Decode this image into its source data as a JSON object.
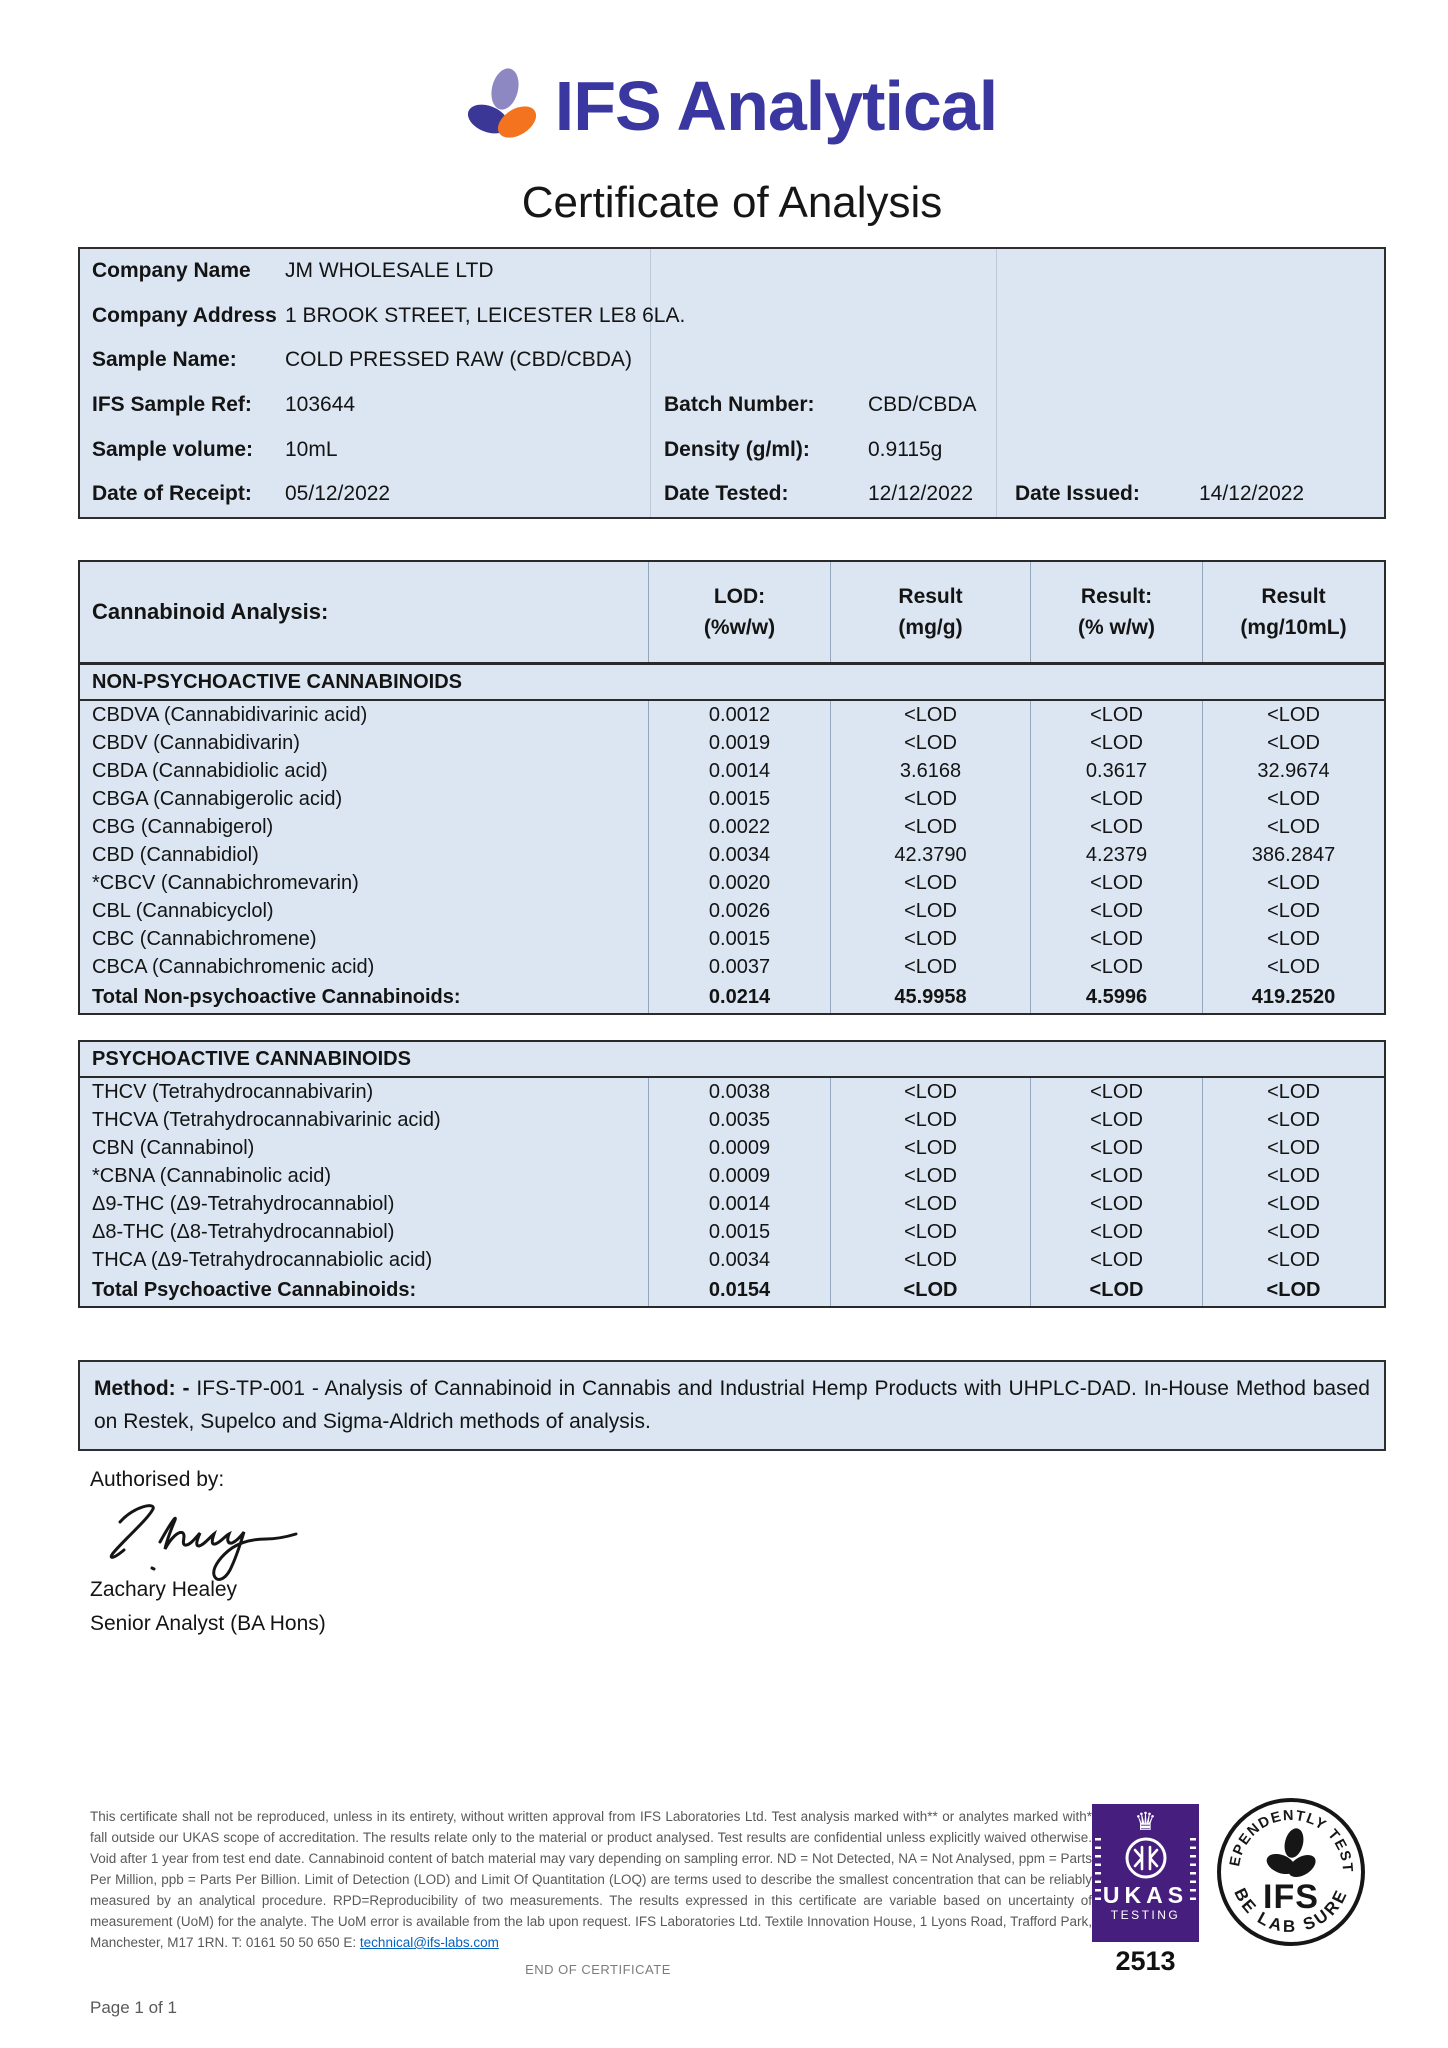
{
  "brand": {
    "name": "IFS Analytical"
  },
  "title": "Certificate of Analysis",
  "colors": {
    "brand_blue": "#3a37a0",
    "brand_lavender": "#8e88c2",
    "brand_orange": "#f4731f",
    "table_bg": "#dbe6f2",
    "ukas_purple": "#461e7d",
    "link_blue": "#0563c1"
  },
  "sample_info": {
    "company_name_label": "Company Name",
    "company_name": "JM WHOLESALE LTD",
    "company_address_label": "Company Address",
    "company_address": "1 BROOK STREET, LEICESTER LE8 6LA.",
    "sample_name_label": "Sample Name:",
    "sample_name": "COLD PRESSED RAW (CBD/CBDA)",
    "ifs_sample_ref_label": "IFS Sample Ref:",
    "ifs_sample_ref": "103644",
    "batch_number_label": "Batch Number:",
    "batch_number": "CBD/CBDA",
    "sample_volume_label": "Sample volume:",
    "sample_volume": "10mL",
    "density_label": "Density (g/ml):",
    "density": "0.9115g",
    "date_receipt_label": "Date of Receipt:",
    "date_receipt": "05/12/2022",
    "date_tested_label": "Date Tested:",
    "date_tested": "12/12/2022",
    "date_issued_label": "Date Issued:",
    "date_issued": "14/12/2022"
  },
  "analysis": {
    "title": "Cannabinoid Analysis:",
    "col_headers": [
      [
        "LOD:",
        "(%w/w)"
      ],
      [
        "Result",
        "(mg/g)"
      ],
      [
        "Result:",
        "(% w/w)"
      ],
      [
        "Result",
        "(mg/10mL)"
      ]
    ],
    "non_psychoactive": {
      "section": "NON-PSYCHOACTIVE CANNABINOIDS",
      "rows": [
        {
          "name": "CBDVA (Cannabidivarinic acid)",
          "lod": "0.0012",
          "mg_g": "<LOD",
          "pct_ww": "<LOD",
          "mg_10ml": "<LOD"
        },
        {
          "name": "CBDV (Cannabidivarin)",
          "lod": "0.0019",
          "mg_g": "<LOD",
          "pct_ww": "<LOD",
          "mg_10ml": "<LOD"
        },
        {
          "name": "CBDA (Cannabidiolic acid)",
          "lod": "0.0014",
          "mg_g": "3.6168",
          "pct_ww": "0.3617",
          "mg_10ml": "32.9674"
        },
        {
          "name": "CBGA (Cannabigerolic acid)",
          "lod": "0.0015",
          "mg_g": "<LOD",
          "pct_ww": "<LOD",
          "mg_10ml": "<LOD"
        },
        {
          "name": "CBG (Cannabigerol)",
          "lod": "0.0022",
          "mg_g": "<LOD",
          "pct_ww": "<LOD",
          "mg_10ml": "<LOD"
        },
        {
          "name": "CBD (Cannabidiol)",
          "lod": "0.0034",
          "mg_g": "42.3790",
          "pct_ww": "4.2379",
          "mg_10ml": "386.2847"
        },
        {
          "name": "*CBCV (Cannabichromevarin)",
          "lod": "0.0020",
          "mg_g": "<LOD",
          "pct_ww": "<LOD",
          "mg_10ml": "<LOD"
        },
        {
          "name": "CBL (Cannabicyclol)",
          "lod": "0.0026",
          "mg_g": "<LOD",
          "pct_ww": "<LOD",
          "mg_10ml": "<LOD"
        },
        {
          "name": "CBC (Cannabichromene)",
          "lod": "0.0015",
          "mg_g": "<LOD",
          "pct_ww": "<LOD",
          "mg_10ml": "<LOD"
        },
        {
          "name": "CBCA (Cannabichromenic acid)",
          "lod": "0.0037",
          "mg_g": "<LOD",
          "pct_ww": "<LOD",
          "mg_10ml": "<LOD"
        },
        {
          "name": "Total Non-psychoactive Cannabinoids:",
          "lod": "0.0214",
          "mg_g": "45.9958",
          "pct_ww": "4.5996",
          "mg_10ml": "419.2520",
          "bold": true
        }
      ]
    },
    "psychoactive": {
      "section": "PSYCHOACTIVE CANNABINOIDS",
      "rows": [
        {
          "name": "THCV (Tetrahydrocannabivarin)",
          "lod": "0.0038",
          "mg_g": "<LOD",
          "pct_ww": "<LOD",
          "mg_10ml": "<LOD"
        },
        {
          "name": "THCVA (Tetrahydrocannabivarinic acid)",
          "lod": "0.0035",
          "mg_g": "<LOD",
          "pct_ww": "<LOD",
          "mg_10ml": "<LOD"
        },
        {
          "name": "CBN (Cannabinol)",
          "lod": "0.0009",
          "mg_g": "<LOD",
          "pct_ww": "<LOD",
          "mg_10ml": "<LOD"
        },
        {
          "name": "*CBNA (Cannabinolic acid)",
          "lod": "0.0009",
          "mg_g": "<LOD",
          "pct_ww": "<LOD",
          "mg_10ml": "<LOD"
        },
        {
          "name": "Δ9-THC (Δ9-Tetrahydrocannabiol)",
          "lod": "0.0014",
          "mg_g": "<LOD",
          "pct_ww": "<LOD",
          "mg_10ml": "<LOD"
        },
        {
          "name": "Δ8-THC (Δ8-Tetrahydrocannabiol)",
          "lod": "0.0015",
          "mg_g": "<LOD",
          "pct_ww": "<LOD",
          "mg_10ml": "<LOD"
        },
        {
          "name": "THCA (Δ9-Tetrahydrocannabiolic acid)",
          "lod": "0.0034",
          "mg_g": "<LOD",
          "pct_ww": "<LOD",
          "mg_10ml": "<LOD"
        },
        {
          "name": "Total Psychoactive Cannabinoids:",
          "lod": "0.0154",
          "mg_g": "<LOD",
          "pct_ww": "<LOD",
          "mg_10ml": "<LOD",
          "bold": true
        }
      ]
    }
  },
  "method": {
    "label": "Method: -",
    "text": "IFS-TP-001 - Analysis of Cannabinoid in Cannabis and Industrial Hemp Products with UHPLC-DAD. In-House Method based on Restek, Supelco and Sigma-Aldrich methods of analysis."
  },
  "authorisation": {
    "label": "Authorised by:",
    "name": "Zachary Healey",
    "role": "Senior Analyst (BA Hons)"
  },
  "footer": {
    "disclaimer": "This certificate shall not be reproduced, unless in its entirety, without written approval from IFS Laboratories Ltd. Test analysis marked with** or analytes marked with* fall outside our UKAS scope of accreditation.  The results relate only to the material or product analysed. Test results are confidential unless explicitly waived otherwise. Void after 1 year from test end date. Cannabinoid content of batch material may vary depending on sampling error. ND = Not Detected, NA = Not Analysed, ppm = Parts Per Million, ppb = Parts Per Billion. Limit of Detection (LOD) and Limit Of Quantitation (LOQ) are terms used to describe the smallest concentration that can be reliably measured by an analytical procedure. RPD=Reproducibility of two measurements. The results expressed in this certificate are variable based on uncertainty of measurement (UoM) for the analyte. The UoM error is available from the lab upon request. IFS Laboratories Ltd. Textile Innovation House, 1 Lyons Road, Trafford Park, Manchester, M17 1RN. T: 0161 50 50 650 E: ",
    "email": "technical@ifs-labs.com",
    "end": "END OF CERTIFICATE",
    "page": "Page 1 of 1",
    "ukas": {
      "name": "UKAS",
      "sub": "TESTING",
      "number": "2513"
    },
    "stamp": {
      "top": "INDEPENDENTLY TESTED",
      "mid": "IFS",
      "bottom": "BE LAB SURE"
    }
  }
}
